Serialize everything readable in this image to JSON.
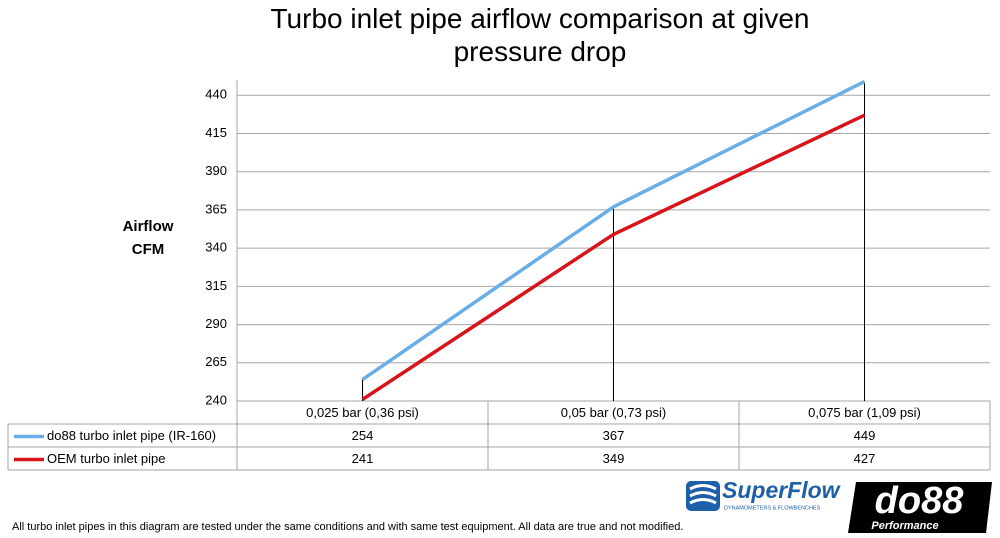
{
  "chart_data": {
    "type": "line",
    "title": "Turbo inlet pipe airflow comparison at given pressure drop",
    "y_label": "Airflow CFM",
    "categories": [
      "0,025 bar (0,36 psi)",
      "0,05 bar (0,73 psi)",
      "0,075 bar (1,09 psi)"
    ],
    "series": [
      {
        "name": "do88 turbo inlet pipe (IR-160)",
        "color": "#6aaee8",
        "values": [
          254,
          367,
          449
        ]
      },
      {
        "name": "OEM turbo inlet pipe",
        "color": "#d7141a",
        "values": [
          241,
          349,
          427
        ]
      }
    ],
    "ylim": [
      240,
      450
    ],
    "yticks": [
      240,
      265,
      290,
      315,
      340,
      365,
      390,
      415,
      440
    ],
    "grid": true,
    "drop_lines": true,
    "data_table": true,
    "footnote": "All turbo inlet pipes in this diagram are tested under the same conditions and with same test equipment. All data are true and not modified.",
    "logos": {
      "superflow": "SuperFlow",
      "superflow_tagline": "DYNAMOMETERS & FLOWBENCHES",
      "do88": "do88",
      "do88_tagline": "Performance"
    }
  }
}
